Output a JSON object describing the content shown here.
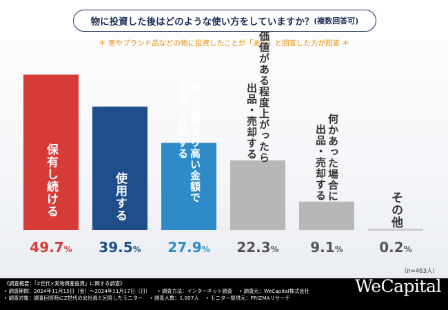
{
  "title": {
    "main": "物に投資した後はどのような使い方をしていますか？",
    "suffix": "(複数回答可)"
  },
  "subtitle": "＊ 車やブランド品などの物に投資したことが「ある」と回答した方が回答 ＊",
  "n_note": "（n=463人）",
  "chart_data": {
    "type": "bar",
    "categories": [
      "保有し続ける",
      "使用する",
      "購入金額より高い金額で出品・売却する",
      "価値がある程度上がったら出品・売却する",
      "何かあった場合に出品・売却する",
      "その他"
    ],
    "label_lines": [
      [
        "保有し続ける"
      ],
      [
        "使用する"
      ],
      [
        "購入金額より高い金額で",
        "出品・売却する"
      ],
      [
        "価値がある程度上がったら",
        "出品・売却する"
      ],
      [
        "何かあった場合に",
        "出品・売却する"
      ],
      [
        "その他"
      ]
    ],
    "values": [
      49.7,
      39.5,
      27.9,
      22.3,
      9.1,
      0.2
    ],
    "value_labels": [
      {
        "num": "49.7",
        "unit": "%"
      },
      {
        "num": "39.5",
        "unit": "%"
      },
      {
        "num": "27.9",
        "unit": "%"
      },
      {
        "num": "22.3",
        "unit": "%"
      },
      {
        "num": "9.1",
        "unit": "%"
      },
      {
        "num": "0.2",
        "unit": "%"
      }
    ],
    "colors": [
      "#d63b38",
      "#1f4f8a",
      "#2e8bc8",
      "#b7b7b7",
      "#b7b7b7",
      "#b7b7b7"
    ],
    "value_colors": [
      "#d63b38",
      "#1f4f8a",
      "#2e8bc8",
      "#555555",
      "#555555",
      "#555555"
    ],
    "ylim": [
      0,
      50
    ]
  },
  "footer": {
    "rows": [
      [
        "《調査概要：「Z世代×実物資産投資」に関する調査》"
      ],
      [
        "• 調査期間：2024年11月15日（金）〜2024年11月17日（日）",
        "• 調査方法：インターネット調査",
        "• 調査元：WeCapital株式会社"
      ],
      [
        "• 調査対象：調査回答時にZ世代の会社員と回答したモニター",
        "• 調査人数：1,007人",
        "• モニター提供元：PRIZMAリサーチ"
      ]
    ],
    "logo": "WeCapital"
  }
}
